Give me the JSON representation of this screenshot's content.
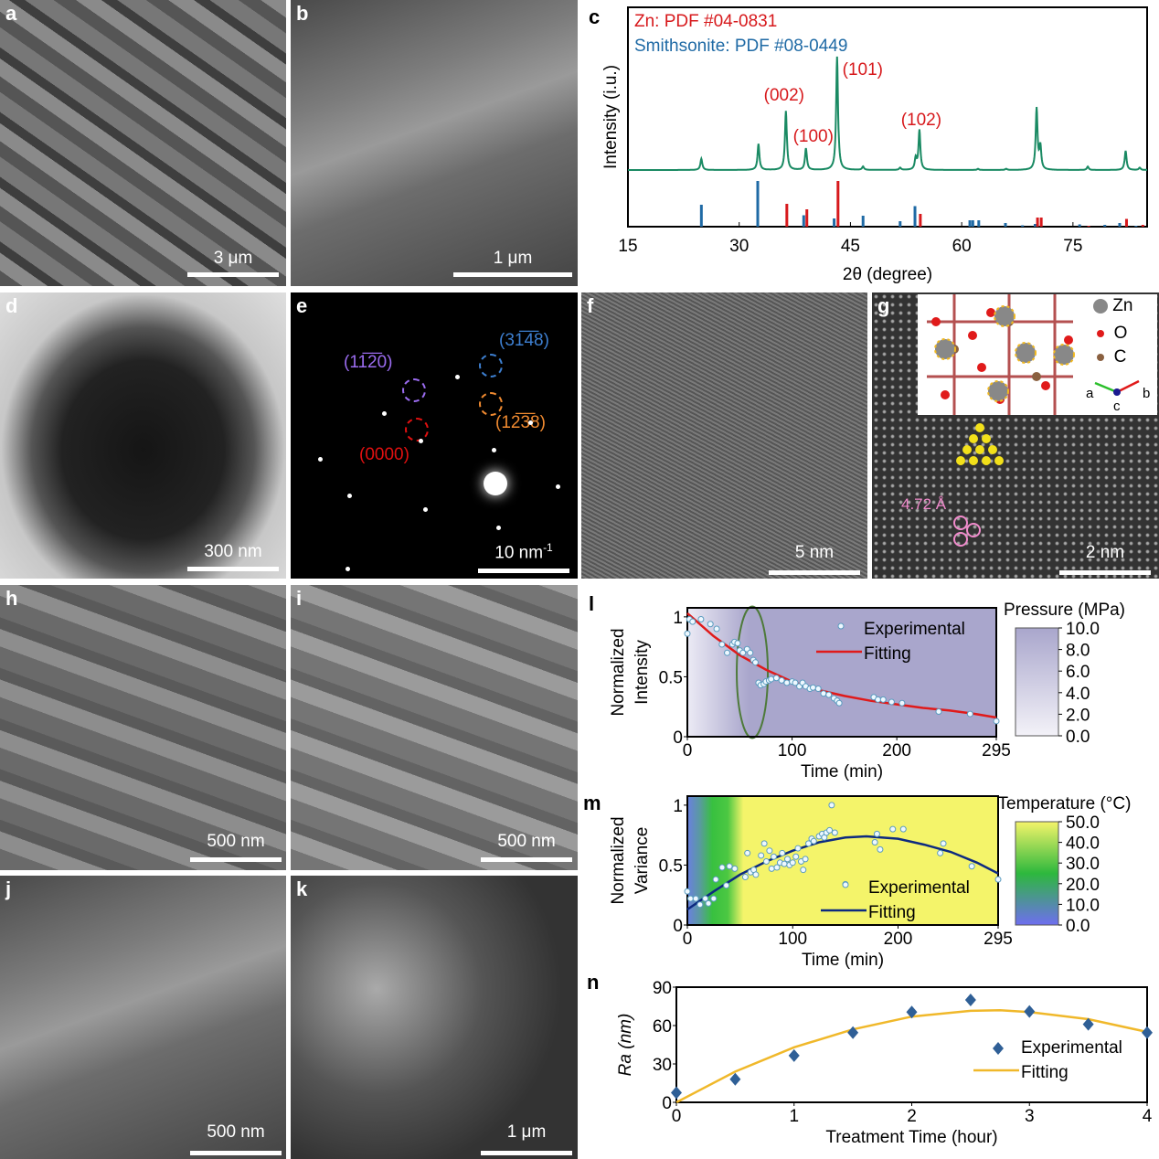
{
  "panels": {
    "a": {
      "label": "a",
      "scale": "3 μm"
    },
    "b": {
      "label": "b",
      "scale": "1 μm"
    },
    "c": {
      "label": "c"
    },
    "d": {
      "label": "d",
      "scale": "300 nm"
    },
    "e": {
      "label": "e",
      "scale": "10 nm",
      "scale_sup": "-1",
      "spots": [
        "(11̅2̅0)",
        "(31̅4̅8)",
        "(0000)",
        "(12̅3̅8)"
      ],
      "ring_colors": [
        "#9b6cf0",
        "#3d7fd0",
        "#e01010",
        "#f08a30"
      ]
    },
    "f": {
      "label": "f",
      "scale": "5 nm"
    },
    "g": {
      "label": "g",
      "scale": "2 nm",
      "d_spacing": "4.72 Å",
      "legend": [
        "Zn",
        "O",
        "C"
      ],
      "axes": [
        "a",
        "b",
        "c"
      ]
    },
    "h": {
      "label": "h",
      "scale": "500 nm"
    },
    "i": {
      "label": "i",
      "scale": "500 nm"
    },
    "j": {
      "label": "j",
      "scale": "500 nm"
    },
    "k": {
      "label": "k",
      "scale": "1 μm"
    },
    "l": {
      "label": "l"
    },
    "m": {
      "label": "m"
    },
    "n": {
      "label": "n"
    }
  },
  "chart_data": [
    {
      "id": "c",
      "type": "line",
      "xlabel": "2θ (degree)",
      "ylabel": "Intensity (i.u.)",
      "xlim": [
        15,
        85
      ],
      "xticks": [
        15,
        30,
        45,
        60,
        75
      ],
      "legend": [
        {
          "name": "Zn: PDF #04-0831",
          "color": "#d7191c"
        },
        {
          "name": "Smithsonite: PDF #08-0449",
          "color": "#1f6aa5"
        }
      ],
      "pattern_color": "#1a8a63",
      "pattern_peaks": [
        [
          24.9,
          0.1
        ],
        [
          32.6,
          0.23
        ],
        [
          36.3,
          0.52
        ],
        [
          39.0,
          0.19
        ],
        [
          43.2,
          1.0
        ],
        [
          46.7,
          0.03
        ],
        [
          51.7,
          0.02
        ],
        [
          53.8,
          0.1
        ],
        [
          54.3,
          0.35
        ],
        [
          62.2,
          0.01
        ],
        [
          66.0,
          0.01
        ],
        [
          70.1,
          0.54
        ],
        [
          70.6,
          0.2
        ],
        [
          77.0,
          0.03
        ],
        [
          82.1,
          0.17
        ],
        [
          84.0,
          0.02
        ]
      ],
      "annotations": [
        {
          "text": "(002)",
          "x": 36.3
        },
        {
          "text": "(100)",
          "x": 39.0
        },
        {
          "text": "(101)",
          "x": 43.2
        },
        {
          "text": "(102)",
          "x": 54.3
        }
      ],
      "zn_sticks": [
        [
          36.3,
          0.5
        ],
        [
          39.0,
          0.38
        ],
        [
          43.2,
          1.0
        ],
        [
          54.3,
          0.28
        ],
        [
          70.1,
          0.2
        ],
        [
          70.6,
          0.2
        ],
        [
          77.0,
          0.02
        ],
        [
          82.1,
          0.17
        ],
        [
          84.3,
          0.04
        ]
      ],
      "smithsonite_sticks": [
        [
          24.9,
          0.48
        ],
        [
          32.5,
          1.0
        ],
        [
          38.7,
          0.25
        ],
        [
          42.8,
          0.18
        ],
        [
          46.7,
          0.24
        ],
        [
          51.7,
          0.12
        ],
        [
          53.7,
          0.45
        ],
        [
          61.1,
          0.14
        ],
        [
          61.5,
          0.14
        ],
        [
          62.3,
          0.14
        ],
        [
          65.9,
          0.08
        ],
        [
          68.2,
          0.03
        ],
        [
          69.9,
          0.06
        ],
        [
          75.9,
          0.05
        ],
        [
          79.3,
          0.04
        ],
        [
          81.3,
          0.08
        ],
        [
          83.5,
          0.02
        ]
      ]
    },
    {
      "id": "l",
      "type": "scatter",
      "xlabel": "Time (min)",
      "ylabel": [
        "Normalized",
        "Intensity"
      ],
      "xlim": [
        0,
        295
      ],
      "ylim": [
        0,
        1
      ],
      "xticks": [
        0,
        100,
        200,
        295
      ],
      "yticks": [
        [
          0,
          "0"
        ],
        [
          0.5,
          "0.5"
        ],
        [
          1,
          "1"
        ]
      ],
      "series": [
        {
          "name": "Experimental",
          "color": "#a9d8ef",
          "x": [
            0,
            2,
            5,
            13,
            22,
            28,
            33,
            38,
            43,
            45,
            48,
            50,
            53,
            57,
            60,
            63,
            65,
            68,
            70,
            73,
            75,
            78,
            80,
            85,
            90,
            95,
            100,
            103,
            107,
            110,
            113,
            117,
            120,
            125,
            130,
            135,
            140,
            143,
            145,
            178,
            182,
            187,
            195,
            205,
            240,
            270,
            295
          ],
          "y": [
            0.86,
            0.98,
            0.96,
            0.98,
            0.94,
            0.9,
            0.77,
            0.7,
            0.77,
            0.79,
            0.78,
            0.72,
            0.7,
            0.73,
            0.7,
            0.64,
            0.62,
            0.45,
            0.43,
            0.44,
            0.46,
            0.47,
            0.48,
            0.49,
            0.47,
            0.45,
            0.46,
            0.45,
            0.42,
            0.45,
            0.42,
            0.4,
            0.41,
            0.4,
            0.36,
            0.35,
            0.32,
            0.3,
            0.28,
            0.33,
            0.31,
            0.31,
            0.29,
            0.28,
            0.21,
            0.19,
            0.13
          ]
        },
        {
          "name": "Fitting",
          "color": "#e01a1a",
          "x": [
            0,
            25,
            50,
            75,
            100,
            125,
            150,
            175,
            200,
            225,
            250,
            275,
            295
          ],
          "y": [
            1.03,
            0.84,
            0.68,
            0.56,
            0.46,
            0.39,
            0.34,
            0.3,
            0.27,
            0.24,
            0.22,
            0.19,
            0.16
          ]
        }
      ],
      "colorbar": {
        "title": "Pressure (MPa)",
        "ticks": [
          "10.0",
          "8.0",
          "6.0",
          "4.0",
          "2.0",
          "0.0"
        ],
        "colors": [
          "#f3f2f8",
          "#a9a6cc"
        ]
      },
      "background": "pressure ramps from 0 to ~10 MPa over first ~60 min",
      "highlight": "ellipse around ~60 min"
    },
    {
      "id": "m",
      "type": "scatter",
      "xlabel": "Time (min)",
      "ylabel": [
        "Normalized",
        "Variance"
      ],
      "xlim": [
        0,
        295
      ],
      "ylim": [
        0,
        1
      ],
      "xticks": [
        0,
        100,
        200,
        295
      ],
      "yticks": [
        [
          0,
          "0"
        ],
        [
          0.5,
          "0.5"
        ],
        [
          1,
          "1"
        ]
      ],
      "series": [
        {
          "name": "Experimental",
          "color": "#a9d8ef",
          "x": [
            0,
            3,
            8,
            12,
            17,
            20,
            25,
            27,
            33,
            37,
            40,
            45,
            55,
            57,
            60,
            63,
            65,
            70,
            73,
            75,
            78,
            80,
            82,
            85,
            88,
            90,
            92,
            95,
            97,
            100,
            103,
            105,
            108,
            110,
            112,
            115,
            118,
            120,
            125,
            128,
            130,
            132,
            135,
            137,
            140,
            150,
            178,
            180,
            183,
            195,
            205,
            240,
            243,
            270,
            295
          ],
          "y": [
            0.28,
            0.22,
            0.22,
            0.17,
            0.22,
            0.18,
            0.22,
            0.38,
            0.48,
            0.33,
            0.49,
            0.47,
            0.4,
            0.6,
            0.44,
            0.46,
            0.42,
            0.58,
            0.68,
            0.53,
            0.62,
            0.47,
            0.57,
            0.48,
            0.52,
            0.6,
            0.51,
            0.55,
            0.5,
            0.52,
            0.57,
            0.64,
            0.53,
            0.46,
            0.55,
            0.68,
            0.72,
            0.7,
            0.74,
            0.76,
            0.73,
            0.77,
            0.79,
            1.0,
            0.77,
            0.34,
            0.69,
            0.76,
            0.63,
            0.8,
            0.8,
            0.6,
            0.68,
            0.49,
            0.38
          ]
        },
        {
          "name": "Fitting",
          "color": "#0d2a80",
          "x": [
            0,
            25,
            50,
            75,
            100,
            125,
            150,
            170,
            200,
            225,
            250,
            275,
            295
          ],
          "y": [
            0.13,
            0.28,
            0.42,
            0.53,
            0.62,
            0.69,
            0.73,
            0.74,
            0.72,
            0.67,
            0.61,
            0.52,
            0.43
          ]
        }
      ],
      "colorbar": {
        "title": "Temperature (°C)",
        "ticks": [
          "50.0",
          "40.0",
          "30.0",
          "20.0",
          "10.0",
          "0.0"
        ],
        "colors": [
          "#6e6ef0",
          "#2db83d",
          "#f4f46a"
        ]
      }
    },
    {
      "id": "n",
      "type": "scatter",
      "xlabel": "Treatment Time (hour)",
      "ylabel": "Ra (nm)",
      "xlim": [
        0,
        4
      ],
      "ylim": [
        0,
        90
      ],
      "xticks": [
        0,
        1,
        2,
        3,
        4
      ],
      "yticks": [
        [
          0,
          "0"
        ],
        [
          30,
          "30"
        ],
        [
          60,
          "60"
        ],
        [
          90,
          "90"
        ]
      ],
      "series": [
        {
          "name": "Experimental",
          "color": "#2f5f96",
          "x": [
            0,
            0.5,
            1,
            1.5,
            2,
            2.5,
            3,
            3.5,
            4
          ],
          "y": [
            7.5,
            18,
            36.5,
            54.5,
            70.5,
            80,
            71,
            61,
            54.5
          ]
        },
        {
          "name": "Fitting",
          "color": "#f0b82a",
          "x": [
            0,
            0.5,
            1,
            1.5,
            2,
            2.5,
            2.75,
            3,
            3.5,
            4
          ],
          "y": [
            0,
            24,
            43,
            57,
            67,
            71.5,
            72,
            70.5,
            65,
            55
          ]
        }
      ]
    }
  ]
}
